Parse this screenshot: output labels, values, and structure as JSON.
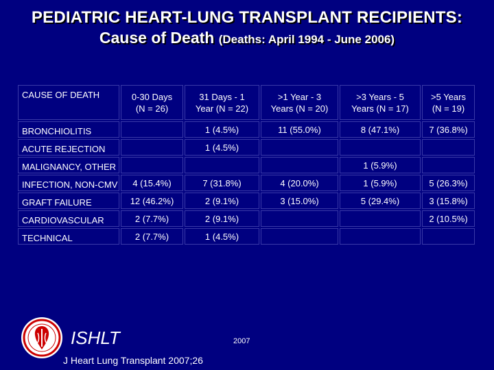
{
  "title": {
    "line1": "PEDIATRIC HEART-LUNG TRANSPLANT RECIPIENTS:",
    "line2_main": "Cause of Death",
    "line2_sub": "(Deaths: April 1994 - June 2006)"
  },
  "table": {
    "header_label": "CAUSE OF DEATH",
    "columns": [
      {
        "line1": "0-30 Days",
        "line2": "(N = 26)"
      },
      {
        "line1": "31 Days - 1",
        "line2": "Year   (N = 22)"
      },
      {
        "line1": ">1 Year - 3",
        "line2": "Years  (N = 20)"
      },
      {
        "line1": ">3 Years - 5",
        "line2": "Years   (N = 17)"
      },
      {
        "line1": ">5 Years",
        "line2": "(N = 19)"
      }
    ],
    "rows": [
      {
        "label": "BRONCHIOLITIS",
        "values": [
          "",
          "1 (4.5%)",
          "11 (55.0%)",
          "8 (47.1%)",
          "7 (36.8%)"
        ]
      },
      {
        "label": "ACUTE REJECTION",
        "values": [
          "",
          "1 (4.5%)",
          "",
          "",
          ""
        ]
      },
      {
        "label": "MALIGNANCY, OTHER",
        "values": [
          "",
          "",
          "",
          "1 (5.9%)",
          ""
        ]
      },
      {
        "label": "INFECTION, NON-CMV",
        "values": [
          "4 (15.4%)",
          "7 (31.8%)",
          "4 (20.0%)",
          "1 (5.9%)",
          "5 (26.3%)"
        ]
      },
      {
        "label": "GRAFT FAILURE",
        "values": [
          "12 (46.2%)",
          "2 (9.1%)",
          "3 (15.0%)",
          "5 (29.4%)",
          "3 (15.8%)"
        ]
      },
      {
        "label": "CARDIOVASCULAR",
        "values": [
          "2 (7.7%)",
          "2 (9.1%)",
          "",
          "",
          "2 (10.5%)"
        ]
      },
      {
        "label": "TECHNICAL",
        "values": [
          "2 (7.7%)",
          "1 (4.5%)",
          "",
          "",
          ""
        ]
      }
    ]
  },
  "footer": {
    "brand": "ISHLT",
    "year": "2007",
    "citation": "J Heart Lung Transplant 2007;26"
  },
  "colors": {
    "background": "#000080",
    "text": "#ffffff",
    "cell_border": "#3a3aa8",
    "logo_red": "#cc0000"
  }
}
